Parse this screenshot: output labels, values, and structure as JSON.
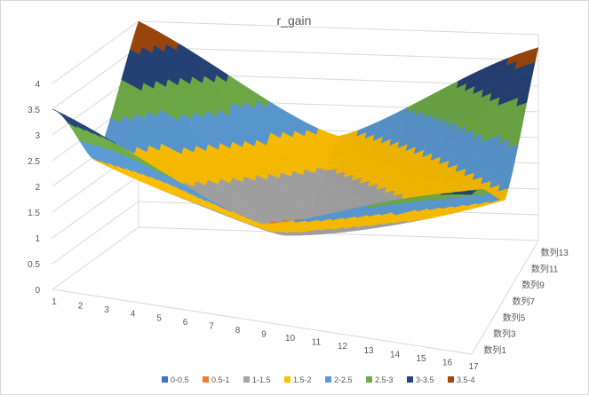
{
  "chart_data": {
    "type": "surface",
    "title": "r_gain",
    "x_ticks": [
      "1",
      "2",
      "3",
      "4",
      "5",
      "6",
      "7",
      "8",
      "9",
      "10",
      "11",
      "12",
      "13",
      "14",
      "15",
      "16",
      "17"
    ],
    "series_ticks": [
      "数列1",
      "数列3",
      "数列5",
      "数列7",
      "数列9",
      "数列11",
      "数列13"
    ],
    "z_ticks": [
      "0",
      "0.5",
      "1",
      "1.5",
      "2",
      "2.5",
      "3",
      "3.5",
      "4"
    ],
    "zlim": [
      0,
      4
    ],
    "grid": true,
    "legend_position": "bottom",
    "corner_values": {
      "front_left": 3.5,
      "back_left": 4.0,
      "back_right": 3.75,
      "front_right": 3.1
    },
    "center_min": 0.95,
    "bands": [
      {
        "label": "0-0.5",
        "color": "#4472C4"
      },
      {
        "label": "0.5-1",
        "color": "#ED7D31"
      },
      {
        "label": "1-1.5",
        "color": "#A5A5A5"
      },
      {
        "label": "1.5-2",
        "color": "#FFC000"
      },
      {
        "label": "2-2.5",
        "color": "#5B9BD5"
      },
      {
        "label": "2.5-3",
        "color": "#70AD47"
      },
      {
        "label": "3-3.5",
        "color": "#264478"
      },
      {
        "label": "3.5-4",
        "color": "#9E480E"
      }
    ]
  }
}
